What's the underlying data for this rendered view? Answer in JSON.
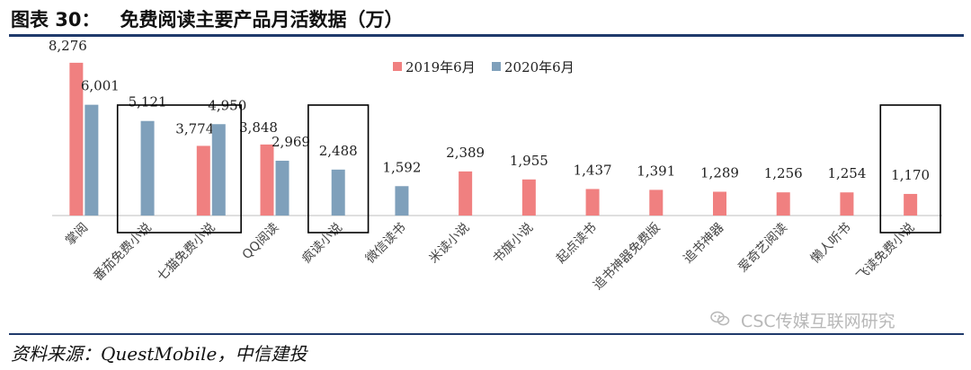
{
  "header": {
    "figure_number": "图表 30：",
    "title": "免费阅读主要产品月活数据（万）"
  },
  "footer": {
    "source": "资料来源：QuestMobile，中信建投"
  },
  "watermark": {
    "text": "CSC传媒互联网研究",
    "icon": "wechat-icon"
  },
  "colors": {
    "series_2019": "#f08080",
    "series_2020": "#7fa0bb",
    "axis": "#bfbfbf",
    "highlight_box": "#000000",
    "rule": "#1f3a6b"
  },
  "chart_data": {
    "type": "bar",
    "title": "免费阅读主要产品月活数据（万）",
    "xlabel": "",
    "ylabel": "",
    "ylim": [
      0,
      9000
    ],
    "grid": false,
    "legend_position": "top-center",
    "categories": [
      "掌阅",
      "番茄免费小说",
      "七猫免费小说",
      "QQ阅读",
      "疯读小说",
      "微信读书",
      "米读小说",
      "书旗小说",
      "起点读书",
      "追书神器免费版",
      "追书神器",
      "爱奇艺阅读",
      "懒人听书",
      "飞读免费小说"
    ],
    "series": [
      {
        "name": "2019年6月",
        "values": [
          8276,
          null,
          3774,
          3848,
          null,
          null,
          2389,
          1955,
          1437,
          1391,
          1289,
          1256,
          1254,
          1170
        ]
      },
      {
        "name": "2020年6月",
        "values": [
          6001,
          5121,
          4950,
          2969,
          2488,
          1592,
          null,
          null,
          null,
          null,
          null,
          null,
          null,
          null
        ]
      }
    ],
    "data_labels": [
      "8,276",
      "6,001",
      "5,121",
      "3,774",
      "4,950",
      "3,848",
      "2,969",
      "2,488",
      "1,592",
      "2,389",
      "1,955",
      "1,437",
      "1,391",
      "1,289",
      "1,256",
      "1,254",
      "1,170"
    ],
    "highlighted_categories": [
      [
        "番茄免费小说",
        "七猫免费小说"
      ],
      [
        "疯读小说"
      ],
      [
        "飞读免费小说"
      ]
    ]
  }
}
